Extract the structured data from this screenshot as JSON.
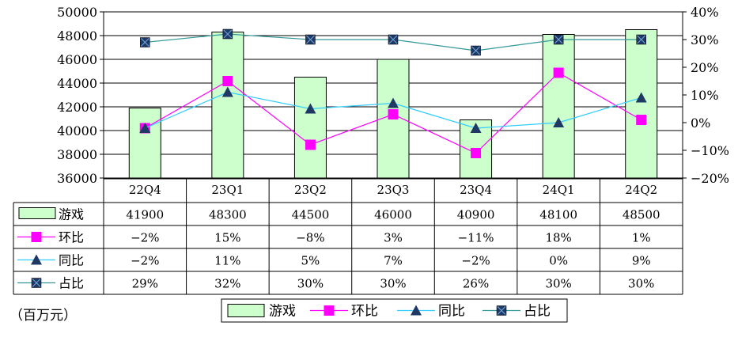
{
  "unit_note": "（百万元）",
  "chart_data": {
    "type": "bar",
    "categories": [
      "22Q4",
      "23Q1",
      "23Q2",
      "23Q3",
      "23Q4",
      "24Q1",
      "24Q2"
    ],
    "left_axis": {
      "min": 36000,
      "max": 50000,
      "step": 2000,
      "ticks": [
        "36000",
        "38000",
        "40000",
        "42000",
        "44000",
        "46000",
        "48000",
        "50000"
      ]
    },
    "right_axis": {
      "min": -20,
      "max": 40,
      "step": 10,
      "ticks": [
        "-20%",
        "-10%",
        "0%",
        "10%",
        "20%",
        "30%",
        "40%"
      ]
    },
    "grid": true,
    "legend_position": "bottom",
    "series": [
      {
        "name": "游戏",
        "kind": "bar",
        "axis": "left",
        "color": "#ccffcc",
        "values": [
          41900,
          48300,
          44500,
          46000,
          40900,
          48100,
          48500
        ],
        "labels": [
          "41900",
          "48300",
          "44500",
          "46000",
          "40900",
          "48100",
          "48500"
        ]
      },
      {
        "name": "环比",
        "kind": "line",
        "axis": "right",
        "color": "#ff00ff",
        "marker": "square",
        "values": [
          -2,
          15,
          -8,
          3,
          -11,
          18,
          1
        ],
        "labels": [
          "-2%",
          "15%",
          "-8%",
          "3%",
          "-11%",
          "18%",
          "1%"
        ]
      },
      {
        "name": "同比",
        "kind": "line",
        "axis": "right",
        "color": "#33ccff",
        "marker_color": "#1f3864",
        "marker": "triangle",
        "values": [
          -2,
          11,
          5,
          7,
          -2,
          0,
          9
        ],
        "labels": [
          "-2%",
          "11%",
          "5%",
          "7%",
          "-2%",
          "0%",
          "9%"
        ]
      },
      {
        "name": "占比",
        "kind": "line",
        "axis": "right",
        "color": "#339999",
        "marker_color": "#1f3864",
        "marker": "square-x",
        "values": [
          29,
          32,
          30,
          30,
          26,
          30,
          30
        ],
        "labels": [
          "29%",
          "32%",
          "30%",
          "30%",
          "26%",
          "30%",
          "30%"
        ]
      }
    ]
  }
}
